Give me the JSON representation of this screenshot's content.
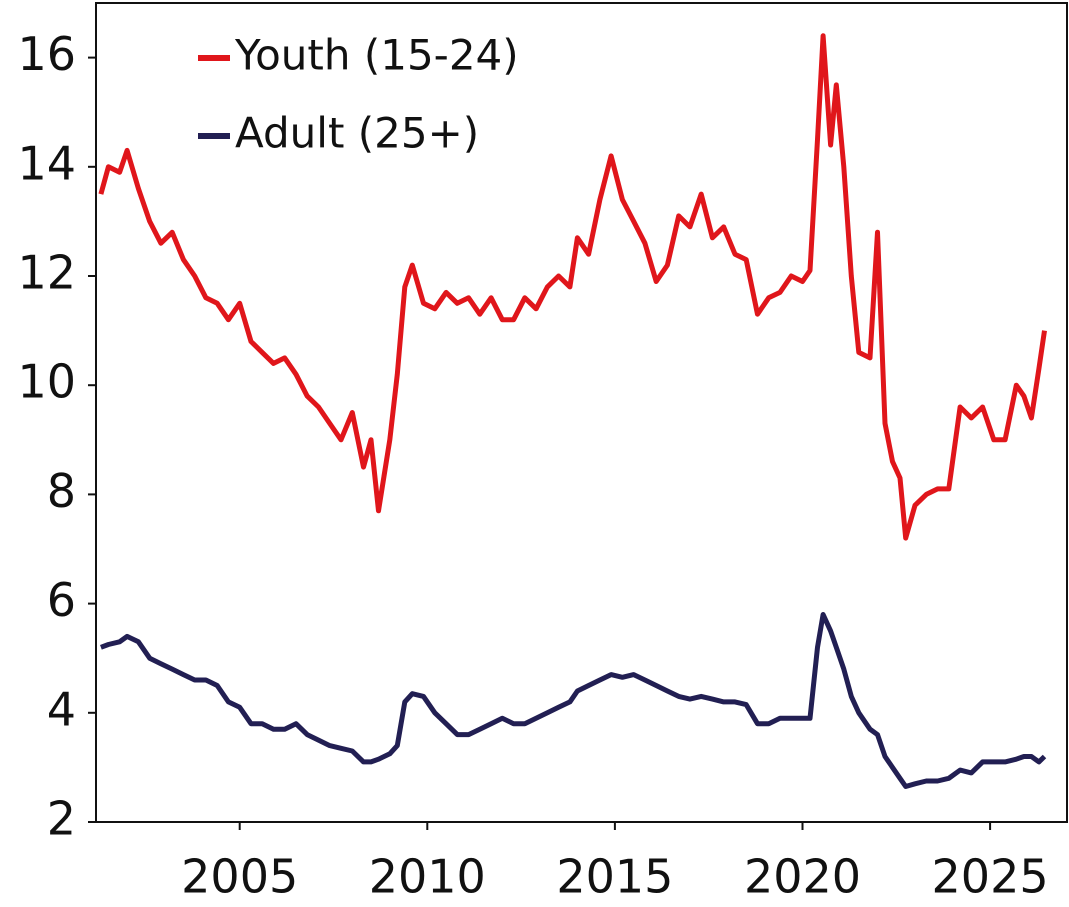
{
  "chart_data": {
    "type": "line",
    "x": [
      2001.3,
      2001.5,
      2001.8,
      2002.0,
      2002.3,
      2002.6,
      2002.9,
      2003.2,
      2003.5,
      2003.8,
      2004.1,
      2004.4,
      2004.7,
      2005.0,
      2005.3,
      2005.6,
      2005.9,
      2006.2,
      2006.5,
      2006.8,
      2007.1,
      2007.4,
      2007.7,
      2008.0,
      2008.3,
      2008.5,
      2008.7,
      2009.0,
      2009.2,
      2009.4,
      2009.6,
      2009.9,
      2010.2,
      2010.5,
      2010.8,
      2011.1,
      2011.4,
      2011.7,
      2012.0,
      2012.3,
      2012.6,
      2012.9,
      2013.2,
      2013.5,
      2013.8,
      2014.0,
      2014.3,
      2014.6,
      2014.9,
      2015.2,
      2015.5,
      2015.8,
      2016.1,
      2016.4,
      2016.7,
      2017.0,
      2017.3,
      2017.6,
      2017.9,
      2018.2,
      2018.5,
      2018.8,
      2019.1,
      2019.4,
      2019.7,
      2020.0,
      2020.2,
      2020.4,
      2020.55,
      2020.75,
      2020.9,
      2021.1,
      2021.3,
      2021.5,
      2021.8,
      2022.0,
      2022.2,
      2022.4,
      2022.6,
      2022.75,
      2023.0,
      2023.3,
      2023.6,
      2023.9,
      2024.2,
      2024.5,
      2024.8,
      2025.1,
      2025.4,
      2025.7,
      2025.9,
      2026.1,
      2026.3,
      2026.45
    ],
    "series": [
      {
        "name": "Youth (15-24)",
        "color": "#e0161b",
        "values": [
          13.5,
          14.0,
          13.9,
          14.3,
          13.6,
          13.0,
          12.6,
          12.8,
          12.3,
          12.0,
          11.6,
          11.5,
          11.2,
          11.5,
          10.8,
          10.6,
          10.4,
          10.5,
          10.2,
          9.8,
          9.6,
          9.3,
          9.0,
          9.5,
          8.5,
          9.0,
          7.7,
          9.0,
          10.2,
          11.8,
          12.2,
          11.5,
          11.4,
          11.7,
          11.5,
          11.6,
          11.3,
          11.6,
          11.2,
          11.2,
          11.6,
          11.4,
          11.8,
          12.0,
          11.8,
          12.7,
          12.4,
          13.4,
          14.2,
          13.4,
          13.0,
          12.6,
          11.9,
          12.2,
          13.1,
          12.9,
          13.5,
          12.7,
          12.9,
          12.4,
          12.3,
          11.3,
          11.6,
          11.7,
          12.0,
          11.9,
          12.1,
          14.5,
          16.4,
          14.4,
          15.5,
          14.0,
          12.0,
          10.6,
          10.5,
          12.8,
          9.3,
          8.6,
          8.3,
          7.2,
          7.8,
          8.0,
          8.1,
          8.1,
          9.6,
          9.4,
          9.6,
          9.0,
          9.0,
          10.0,
          9.8,
          9.4,
          10.3,
          11.0
        ]
      },
      {
        "name": "Adult (25+)",
        "color": "#221f53",
        "values": [
          5.2,
          5.25,
          5.3,
          5.4,
          5.3,
          5.0,
          4.9,
          4.8,
          4.7,
          4.6,
          4.6,
          4.5,
          4.2,
          4.1,
          3.8,
          3.8,
          3.7,
          3.7,
          3.8,
          3.6,
          3.5,
          3.4,
          3.35,
          3.3,
          3.1,
          3.1,
          3.15,
          3.25,
          3.4,
          4.2,
          4.35,
          4.3,
          4.0,
          3.8,
          3.6,
          3.6,
          3.7,
          3.8,
          3.9,
          3.8,
          3.8,
          3.9,
          4.0,
          4.1,
          4.2,
          4.4,
          4.5,
          4.6,
          4.7,
          4.65,
          4.7,
          4.6,
          4.5,
          4.4,
          4.3,
          4.25,
          4.3,
          4.25,
          4.2,
          4.2,
          4.15,
          3.8,
          3.8,
          3.9,
          3.9,
          3.9,
          3.9,
          5.2,
          5.8,
          5.5,
          5.2,
          4.8,
          4.3,
          4.0,
          3.7,
          3.6,
          3.2,
          3.0,
          2.8,
          2.65,
          2.7,
          2.75,
          2.75,
          2.8,
          2.95,
          2.9,
          3.1,
          3.1,
          3.1,
          3.15,
          3.2,
          3.2,
          3.1,
          3.2
        ]
      }
    ],
    "xlim": [
      2001.17,
      2027.05
    ],
    "xticks": [
      2005,
      2010,
      2015,
      2020,
      2025
    ],
    "ylim": [
      2,
      17
    ],
    "yticks": [
      2,
      4,
      6,
      8,
      10,
      12,
      14,
      16
    ],
    "legend": "upper left"
  }
}
